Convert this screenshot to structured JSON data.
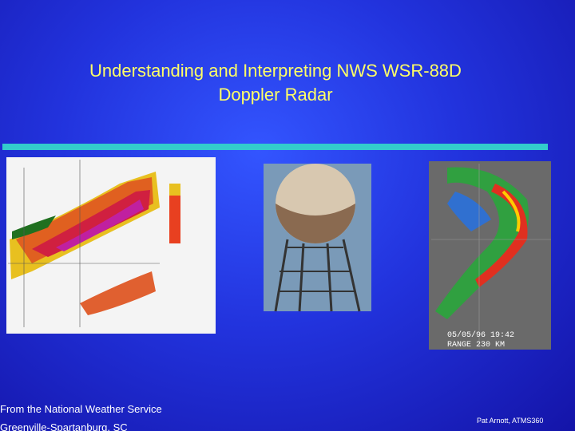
{
  "slide": {
    "title": [
      "Understanding and Interpreting NWS WSR-88D",
      "Doppler Radar"
    ],
    "images": {
      "radar_map_right": {
        "timestamp": "05/05/96 19:42",
        "range": "RANGE 230 KM"
      }
    },
    "footer": {
      "source": [
        "From the National Weather Service",
        "Greenville-Spartanburg, SC"
      ],
      "author": "Pat Arnott, ATMS360"
    }
  }
}
